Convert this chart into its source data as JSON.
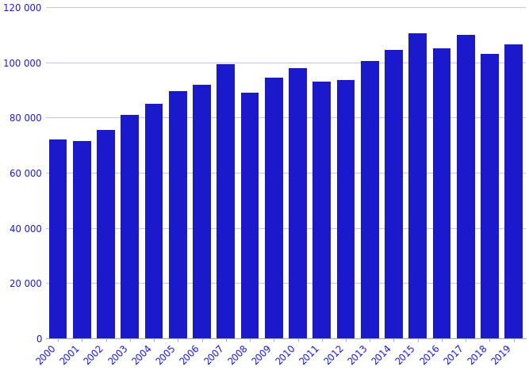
{
  "categories": [
    "2000",
    "2001",
    "2002",
    "2003",
    "2004",
    "2005",
    "2006",
    "2007",
    "2008",
    "2009",
    "2010",
    "2011",
    "2012",
    "2013",
    "2014",
    "2015",
    "2016",
    "2017",
    "2018",
    "2019"
  ],
  "values": [
    72000,
    71500,
    75500,
    81000,
    85000,
    89500,
    92000,
    99500,
    89000,
    94500,
    98000,
    93000,
    93500,
    100500,
    104500,
    110500,
    105000,
    110000,
    103000,
    106500
  ],
  "bar_color": "#1a1acc",
  "ylim": [
    0,
    120000
  ],
  "yticks": [
    0,
    20000,
    40000,
    60000,
    80000,
    100000,
    120000
  ],
  "ytick_labels": [
    "0",
    "20 000",
    "40 000",
    "60 000",
    "80 000",
    "100 000",
    "120 000"
  ],
  "grid_color": "#c8c8e0",
  "label_color": "#1a1acc",
  "background_color": "#ffffff",
  "bar_width": 0.75,
  "figsize": [
    6.67,
    4.67
  ],
  "dpi": 100
}
